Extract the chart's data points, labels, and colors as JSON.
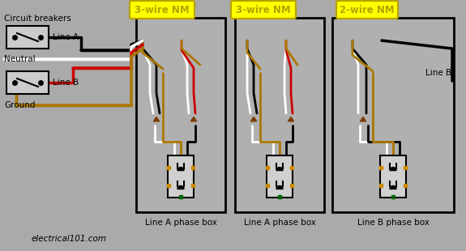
{
  "bg_color": "#aaaaaa",
  "yellow_color": "#ffff00",
  "yellow_border": "#b8a000",
  "yellow_text": "#b8a000",
  "black_color": "#000000",
  "white_color": "#ffffff",
  "red_color": "#cc0000",
  "ground_color": "#aa7700",
  "brown_color": "#7a3b00",
  "box_fill": "#b0b0b0",
  "green_color": "#006600",
  "gray_outlet": "#d0d0d0",
  "labels": {
    "circuit_breakers": "Circuit breakers",
    "line_a": "Line A",
    "line_b": "Line B",
    "neutral": "Neutral",
    "ground": "Ground",
    "nm1": "3-wire NM",
    "nm2": "3-wire NM",
    "nm3": "2-wire NM",
    "box1": "Line A phase box",
    "box2": "Line A phase box",
    "box3": "Line B phase box",
    "lineb_label": "Line B",
    "watermark": "electrical101.com"
  },
  "figsize": [
    5.75,
    3.1
  ],
  "dpi": 100
}
